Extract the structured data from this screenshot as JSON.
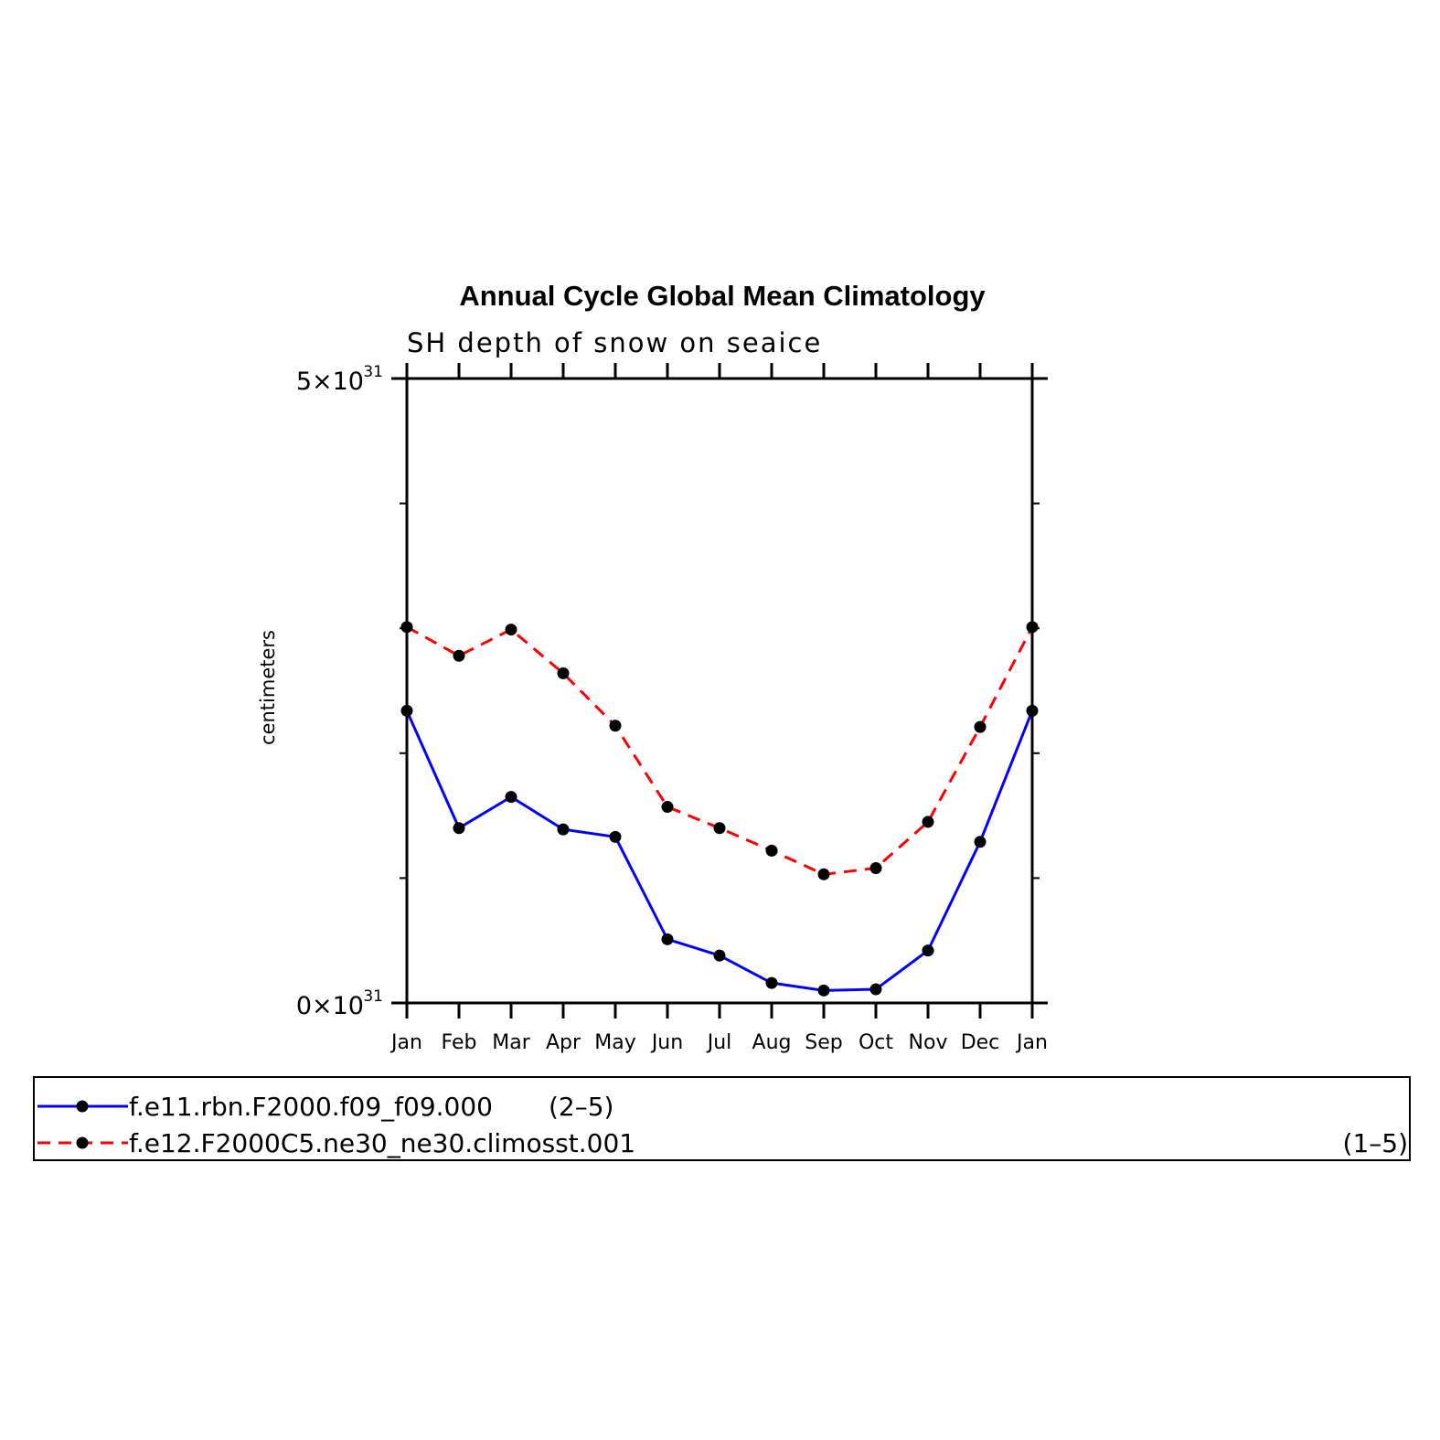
{
  "chart_data": {
    "type": "line",
    "title": "Annual Cycle Global Mean Climatology",
    "subtitle": "SH depth of snow on seaice",
    "ylabel": "centimeters",
    "ylim": [
      0,
      5
    ],
    "y_multiplier": "10",
    "y_exponent": "31",
    "y_tick_labels": [
      {
        "value": 5,
        "mantissa": "5×10",
        "exponent": "31"
      },
      {
        "value": 0,
        "mantissa": "0×10",
        "exponent": "31"
      }
    ],
    "y_minor_ticks": [
      1,
      2,
      3,
      4
    ],
    "categories": [
      "Jan",
      "Feb",
      "Mar",
      "Apr",
      "May",
      "Jun",
      "Jul",
      "Aug",
      "Sep",
      "Oct",
      "Nov",
      "Dec",
      "Jan"
    ],
    "series": [
      {
        "name": "f.e11.rbn.F2000.f09_f09.000",
        "count_label": "(2–5)",
        "color": "#0000ff",
        "style": "solid",
        "values": [
          2.34,
          1.4,
          1.65,
          1.39,
          1.33,
          0.51,
          0.38,
          0.16,
          0.1,
          0.11,
          0.42,
          1.29,
          2.34
        ]
      },
      {
        "name": "f.e12.F2000C5.ne30_ne30.climosst.001",
        "count_label": "(1–5)",
        "color": "#ff0000",
        "style": "dashed",
        "values": [
          3.01,
          2.78,
          2.99,
          2.64,
          2.22,
          1.57,
          1.4,
          1.22,
          1.03,
          1.08,
          1.45,
          2.21,
          3.01
        ]
      }
    ],
    "marker_color": "#000000",
    "grid": false,
    "legend_position": "bottom"
  }
}
